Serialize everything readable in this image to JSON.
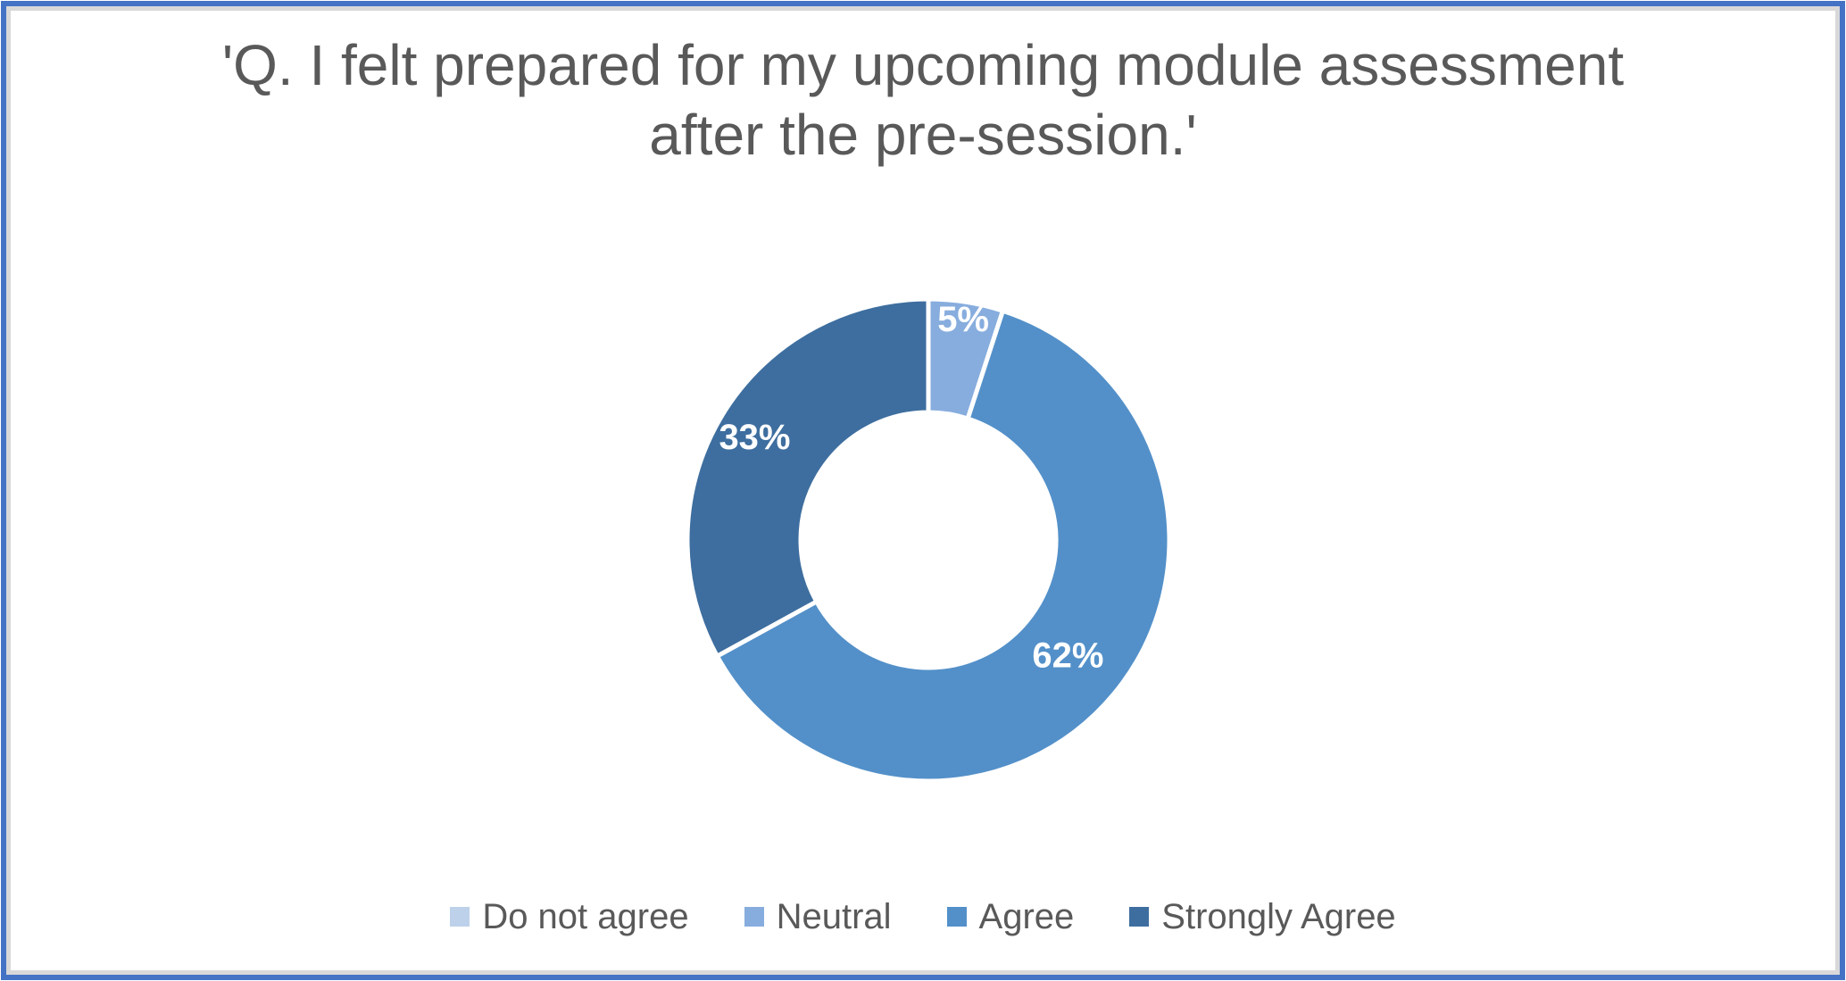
{
  "frame": {
    "outer_border_color": "#4472C4",
    "inner_border_color": "#D8D8D8",
    "background": "#FFFFFF"
  },
  "chart_data": {
    "type": "pie",
    "subtype": "doughnut",
    "title": "'Q. I felt prepared for my upcoming module assessment after the pre-session.'",
    "title_lines": [
      "'Q. I felt prepared for my upcoming module assessment",
      "after the pre-session.'"
    ],
    "title_color": "#595959",
    "categories": [
      "Do not agree",
      "Neutral",
      "Agree",
      "Strongly Agree"
    ],
    "values": [
      0,
      5,
      62,
      33
    ],
    "unit": "%",
    "colors": [
      "#BDD1EA",
      "#87ADDE",
      "#5390C9",
      "#3E6E9F"
    ],
    "data_labels": [
      "",
      "5%",
      "62%",
      "33%"
    ],
    "data_label_color": "#FFFFFF",
    "start_angle_deg": 0,
    "direction": "clockwise",
    "outer_radius": 270,
    "inner_radius": 143,
    "hole_radius_frac": 0.53,
    "slice_gap_color": "#FFFFFF",
    "slice_gap_width": 5,
    "label_radius": [
      0,
      250,
      203,
      226
    ],
    "legend_position": "bottom",
    "legend": [
      {
        "label": "Do not agree",
        "color": "#BDD1EA"
      },
      {
        "label": "Neutral",
        "color": "#87ADDE"
      },
      {
        "label": "Agree",
        "color": "#5390C9"
      },
      {
        "label": "Strongly Agree",
        "color": "#3E6E9F"
      }
    ]
  }
}
